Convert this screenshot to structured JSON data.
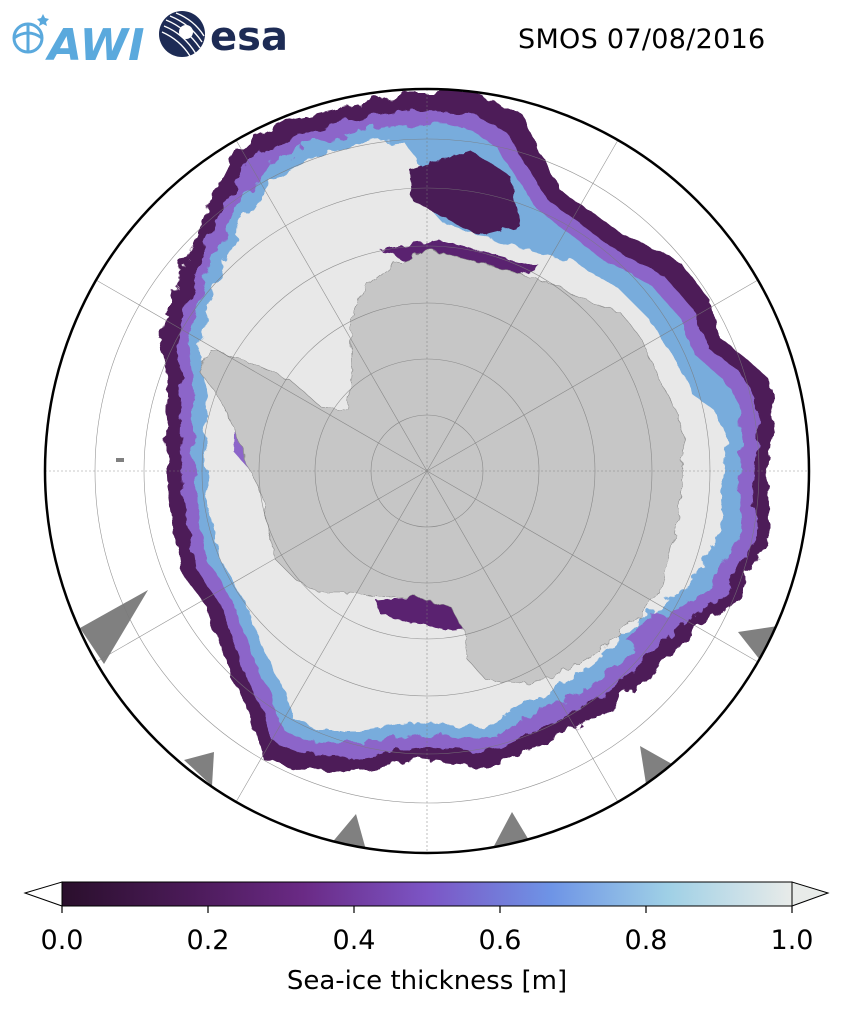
{
  "title": "SMOS 07/08/2016",
  "logos": {
    "awi": "AWI",
    "esa": "esa"
  },
  "map": {
    "projection": "south-polar-stereographic",
    "land_color": "#c6c6c6",
    "thick_ice_color": "#e8e8e8",
    "ocean_color": "#ffffff",
    "nodata_color": "#808080"
  },
  "colorbar": {
    "label": "Sea-ice thickness [m]",
    "min": 0.0,
    "max": 1.0,
    "extend": "both",
    "ticks": [
      "0.0",
      "0.2",
      "0.4",
      "0.6",
      "0.8",
      "1.0"
    ],
    "colors": [
      "#2a0f2c",
      "#4a1a57",
      "#6a2a85",
      "#7c55c5",
      "#6e94e6",
      "#9fd0e6",
      "#e8ebe9"
    ]
  }
}
